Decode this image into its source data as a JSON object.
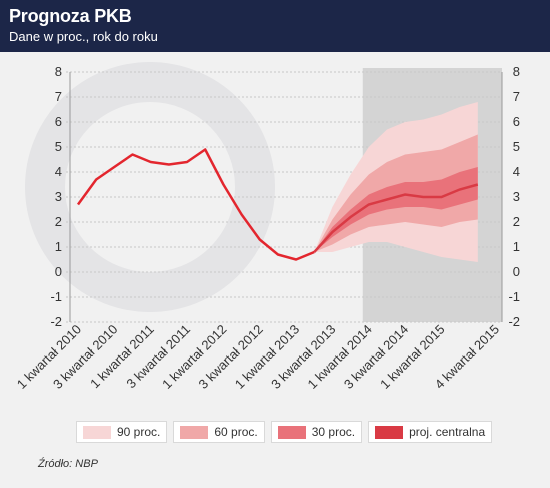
{
  "header": {
    "title": "Prognoza PKB",
    "subtitle": "Dane w proc., rok do roku"
  },
  "source": "Źródło: NBP",
  "colors": {
    "header_bg": "#1c2648",
    "actual_line": "#e3262e",
    "band_90": "#f7d6d6",
    "band_60": "#f0a8a8",
    "band_30": "#e9727a",
    "central": "#d93a44",
    "forecast_shade": "#d4d4d4"
  },
  "chart_data": {
    "type": "line",
    "title": "Prognoza PKB",
    "subtitle": "Dane w proc., rok do roku",
    "ylim": [
      -2,
      8
    ],
    "yticks": [
      "8",
      "7",
      "6",
      "5",
      "4",
      "3",
      "2",
      "1",
      "0",
      "-1",
      "-2"
    ],
    "x_tick_labels": [
      "1 kwartał 2010",
      "3 kwartał 2010",
      "1 kwartał 2011",
      "3 kwartał 2011",
      "1 kwartał 2012",
      "3 kwartał 2012",
      "1 kwartał 2013",
      "3 kwartał 2013",
      "1 kwartał 2014",
      "3 kwartał 2014",
      "1 kwartał 2015",
      "4 kwartał 2015"
    ],
    "quarters": [
      "Q1 2010",
      "Q2 2010",
      "Q3 2010",
      "Q4 2010",
      "Q1 2011",
      "Q2 2011",
      "Q3 2011",
      "Q4 2011",
      "Q1 2012",
      "Q2 2012",
      "Q3 2012",
      "Q4 2012",
      "Q1 2013",
      "Q2 2013",
      "Q3 2013",
      "Q4 2013",
      "Q1 2014",
      "Q2 2014",
      "Q3 2014",
      "Q4 2014",
      "Q1 2015",
      "Q2 2015",
      "Q3 2015",
      "Q4 2015"
    ],
    "actual": {
      "start_index": 0,
      "values": [
        2.7,
        3.7,
        4.2,
        4.7,
        4.4,
        4.3,
        4.4,
        4.9,
        3.5,
        2.3,
        1.3,
        0.7,
        0.5,
        0.8
      ]
    },
    "projection": {
      "start_index": 13,
      "central": [
        0.8,
        1.6,
        2.2,
        2.7,
        2.9,
        3.1,
        3.0,
        3.0,
        3.3,
        3.5
      ],
      "band_30": {
        "lower": [
          0.8,
          1.4,
          1.9,
          2.3,
          2.5,
          2.6,
          2.6,
          2.5,
          2.7,
          2.9
        ],
        "upper": [
          0.8,
          1.8,
          2.5,
          3.1,
          3.4,
          3.6,
          3.6,
          3.7,
          4.0,
          4.2
        ]
      },
      "band_60": {
        "lower": [
          0.8,
          1.1,
          1.5,
          1.8,
          1.9,
          2.0,
          1.9,
          1.8,
          2.0,
          2.1
        ],
        "upper": [
          0.8,
          2.1,
          3.1,
          3.9,
          4.4,
          4.7,
          4.8,
          4.9,
          5.2,
          5.5
        ]
      },
      "band_90": {
        "lower": [
          0.8,
          0.8,
          1.0,
          1.2,
          1.2,
          1.0,
          0.8,
          0.6,
          0.5,
          0.4
        ],
        "upper": [
          0.8,
          2.6,
          3.9,
          5.0,
          5.7,
          6.0,
          6.1,
          6.3,
          6.6,
          6.8
        ]
      }
    },
    "forecast_start_index": 16,
    "grid": true,
    "legend": [
      {
        "label": "90 proc.",
        "color": "#f7d6d6"
      },
      {
        "label": "60 proc.",
        "color": "#f0a8a8"
      },
      {
        "label": "30 proc.",
        "color": "#e9727a"
      },
      {
        "label": "proj. centralna",
        "color": "#d93a44"
      }
    ],
    "legend_position": "bottom"
  }
}
